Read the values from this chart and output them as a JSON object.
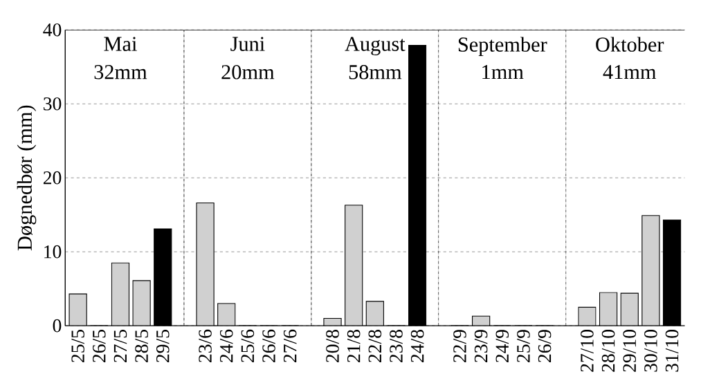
{
  "chart_data": {
    "type": "bar",
    "ylabel": "Døgnedbør (mm)",
    "categories": [
      "25/5",
      "26/5",
      "27/5",
      "28/5",
      "29/5",
      null,
      "23/6",
      "24/6",
      "25/6",
      "26/6",
      "27/6",
      null,
      "20/8",
      "21/8",
      "22/8",
      "23/8",
      "24/8",
      null,
      "22/9",
      "23/9",
      "24/9",
      "25/9",
      "26/9",
      null,
      "27/10",
      "28/10",
      "29/10",
      "30/10",
      "31/10"
    ],
    "values": [
      4.3,
      0,
      8.5,
      6.1,
      13.1,
      null,
      16.6,
      3.0,
      0,
      0,
      0,
      null,
      1.0,
      16.3,
      3.3,
      0,
      37.9,
      null,
      0,
      1.3,
      0,
      0,
      0,
      null,
      2.5,
      4.5,
      4.4,
      14.9,
      14.3
    ],
    "colors": [
      "#d0d0d0",
      "#d0d0d0",
      "#d0d0d0",
      "#d0d0d0",
      "#000000",
      null,
      "#d0d0d0",
      "#d0d0d0",
      "#d0d0d0",
      "#d0d0d0",
      "#000000",
      null,
      "#d0d0d0",
      "#d0d0d0",
      "#d0d0d0",
      "#d0d0d0",
      "#000000",
      null,
      "#d0d0d0",
      "#d0d0d0",
      "#d0d0d0",
      "#d0d0d0",
      "#000000",
      null,
      "#d0d0d0",
      "#d0d0d0",
      "#d0d0d0",
      "#d0d0d0",
      "#000000"
    ],
    "annotations": [
      "Mai",
      "32mm",
      "Juni",
      "20mm",
      "August",
      "58mm",
      "September",
      "1mm",
      "Oktober",
      "41mm"
    ],
    "ylim": [
      0,
      40
    ],
    "yticks": [
      0,
      10,
      20,
      30,
      40
    ],
    "grid": true
  }
}
